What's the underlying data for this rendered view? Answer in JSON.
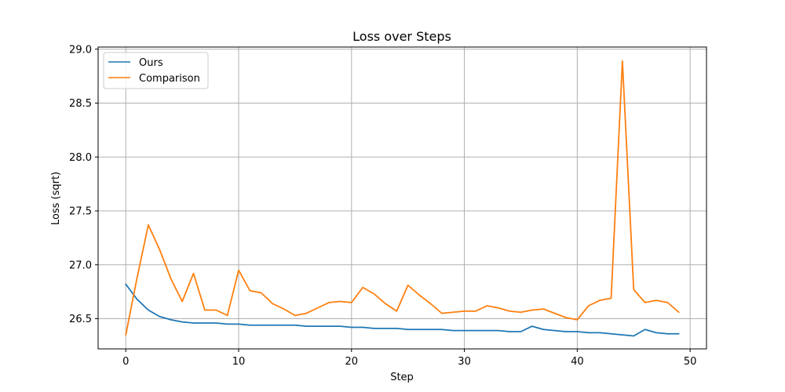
{
  "chart_data": {
    "type": "line",
    "title": "Loss over Steps",
    "xlabel": "Step",
    "ylabel": "Loss (sqrt)",
    "xlim": [
      -2.45,
      51.45
    ],
    "ylim": [
      26.22,
      29.02
    ],
    "xticks": [
      0,
      10,
      20,
      30,
      40,
      50
    ],
    "yticks": [
      26.5,
      27.0,
      27.5,
      28.0,
      28.5,
      29.0
    ],
    "ytick_labels": [
      "26.5",
      "27.0",
      "27.5",
      "28.0",
      "28.5",
      "29.0"
    ],
    "grid": true,
    "legend_position": "top-left",
    "x": [
      0,
      1,
      2,
      3,
      4,
      5,
      6,
      7,
      8,
      9,
      10,
      11,
      12,
      13,
      14,
      15,
      16,
      17,
      18,
      19,
      20,
      21,
      22,
      23,
      24,
      25,
      26,
      27,
      28,
      29,
      30,
      31,
      32,
      33,
      34,
      35,
      36,
      37,
      38,
      39,
      40,
      41,
      42,
      43,
      44,
      45,
      46,
      47,
      48,
      49
    ],
    "series": [
      {
        "name": "Ours",
        "color": "#1f77b4",
        "values": [
          26.82,
          26.68,
          26.58,
          26.52,
          26.49,
          26.47,
          26.46,
          26.46,
          26.46,
          26.45,
          26.45,
          26.44,
          26.44,
          26.44,
          26.44,
          26.44,
          26.43,
          26.43,
          26.43,
          26.43,
          26.42,
          26.42,
          26.41,
          26.41,
          26.41,
          26.4,
          26.4,
          26.4,
          26.4,
          26.39,
          26.39,
          26.39,
          26.39,
          26.39,
          26.38,
          26.38,
          26.43,
          26.4,
          26.39,
          26.38,
          26.38,
          26.37,
          26.37,
          26.36,
          26.35,
          26.34,
          26.4,
          26.37,
          26.36,
          26.36
        ]
      },
      {
        "name": "Comparison",
        "color": "#ff7f0e",
        "values": [
          26.35,
          26.88,
          27.37,
          27.14,
          26.87,
          26.66,
          26.92,
          26.58,
          26.58,
          26.53,
          26.95,
          26.76,
          26.74,
          26.64,
          26.59,
          26.53,
          26.55,
          26.6,
          26.65,
          26.66,
          26.65,
          26.79,
          26.73,
          26.64,
          26.57,
          26.81,
          26.72,
          26.64,
          26.55,
          26.56,
          26.57,
          26.57,
          26.62,
          26.6,
          26.57,
          26.56,
          26.58,
          26.59,
          26.55,
          26.51,
          26.49,
          26.62,
          26.67,
          26.69,
          28.89,
          26.77,
          26.65,
          26.67,
          26.65,
          26.56
        ]
      }
    ]
  }
}
